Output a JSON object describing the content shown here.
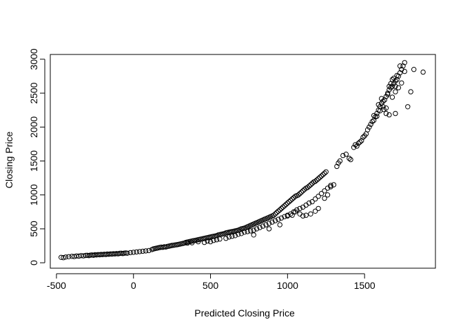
{
  "chart_data": {
    "type": "scatter",
    "title": "",
    "xlabel": "Predicted Closing Price",
    "ylabel": "Closing Price",
    "xlim": [
      -540,
      1960
    ],
    "ylim": [
      -80,
      3070
    ],
    "xticks": [
      -500,
      0,
      500,
      1000,
      1500
    ],
    "yticks": [
      0,
      500,
      1000,
      1500,
      2000,
      2500,
      3000
    ],
    "grid": false,
    "legend": "none",
    "marker": "open-circle",
    "points": [
      [
        -470,
        80
      ],
      [
        -455,
        75
      ],
      [
        -440,
        85
      ],
      [
        -420,
        90
      ],
      [
        -400,
        95
      ],
      [
        -385,
        92
      ],
      [
        -370,
        100
      ],
      [
        -355,
        98
      ],
      [
        -340,
        105
      ],
      [
        -325,
        102
      ],
      [
        -310,
        108
      ],
      [
        -300,
        110
      ],
      [
        -290,
        106
      ],
      [
        -280,
        112
      ],
      [
        -270,
        115
      ],
      [
        -260,
        110
      ],
      [
        -250,
        118
      ],
      [
        -240,
        115
      ],
      [
        -230,
        120
      ],
      [
        -220,
        118
      ],
      [
        -210,
        122
      ],
      [
        -200,
        120
      ],
      [
        -190,
        125
      ],
      [
        -180,
        122
      ],
      [
        -170,
        128
      ],
      [
        -160,
        125
      ],
      [
        -150,
        130
      ],
      [
        -140,
        128
      ],
      [
        -130,
        132
      ],
      [
        -120,
        130
      ],
      [
        -110,
        135
      ],
      [
        -100,
        132
      ],
      [
        -90,
        138
      ],
      [
        -80,
        140
      ],
      [
        -70,
        136
      ],
      [
        -60,
        142
      ],
      [
        -50,
        145
      ],
      [
        -40,
        140
      ],
      [
        -20,
        150
      ],
      [
        0,
        155
      ],
      [
        20,
        160
      ],
      [
        40,
        165
      ],
      [
        60,
        170
      ],
      [
        80,
        175
      ],
      [
        100,
        180
      ],
      [
        120,
        195
      ],
      [
        130,
        205
      ],
      [
        140,
        210
      ],
      [
        150,
        215
      ],
      [
        160,
        220
      ],
      [
        170,
        225
      ],
      [
        180,
        230
      ],
      [
        190,
        228
      ],
      [
        200,
        235
      ],
      [
        210,
        232
      ],
      [
        220,
        240
      ],
      [
        230,
        245
      ],
      [
        240,
        250
      ],
      [
        250,
        255
      ],
      [
        260,
        258
      ],
      [
        270,
        262
      ],
      [
        280,
        265
      ],
      [
        290,
        270
      ],
      [
        300,
        275
      ],
      [
        310,
        280
      ],
      [
        320,
        285
      ],
      [
        330,
        290
      ],
      [
        340,
        300
      ],
      [
        350,
        305
      ],
      [
        360,
        310
      ],
      [
        370,
        315
      ],
      [
        380,
        320
      ],
      [
        390,
        325
      ],
      [
        400,
        330
      ],
      [
        410,
        335
      ],
      [
        420,
        340
      ],
      [
        430,
        345
      ],
      [
        440,
        350
      ],
      [
        450,
        355
      ],
      [
        460,
        360
      ],
      [
        470,
        365
      ],
      [
        480,
        370
      ],
      [
        490,
        375
      ],
      [
        500,
        380
      ],
      [
        510,
        385
      ],
      [
        520,
        390
      ],
      [
        530,
        395
      ],
      [
        540,
        400
      ],
      [
        550,
        410
      ],
      [
        560,
        415
      ],
      [
        570,
        420
      ],
      [
        580,
        425
      ],
      [
        590,
        430
      ],
      [
        600,
        440
      ],
      [
        610,
        445
      ],
      [
        620,
        450
      ],
      [
        630,
        455
      ],
      [
        640,
        460
      ],
      [
        650,
        465
      ],
      [
        660,
        470
      ],
      [
        670,
        475
      ],
      [
        680,
        480
      ],
      [
        690,
        490
      ],
      [
        700,
        500
      ],
      [
        710,
        505
      ],
      [
        720,
        510
      ],
      [
        730,
        520
      ],
      [
        740,
        530
      ],
      [
        750,
        540
      ],
      [
        760,
        550
      ],
      [
        770,
        560
      ],
      [
        780,
        570
      ],
      [
        790,
        580
      ],
      [
        800,
        590
      ],
      [
        810,
        600
      ],
      [
        820,
        610
      ],
      [
        830,
        620
      ],
      [
        840,
        630
      ],
      [
        850,
        640
      ],
      [
        860,
        650
      ],
      [
        870,
        660
      ],
      [
        880,
        670
      ],
      [
        890,
        680
      ],
      [
        900,
        690
      ],
      [
        910,
        700
      ],
      [
        920,
        720
      ],
      [
        930,
        740
      ],
      [
        940,
        760
      ],
      [
        950,
        780
      ],
      [
        960,
        800
      ],
      [
        970,
        820
      ],
      [
        980,
        840
      ],
      [
        990,
        860
      ],
      [
        1000,
        880
      ],
      [
        1010,
        900
      ],
      [
        1020,
        920
      ],
      [
        1030,
        940
      ],
      [
        1040,
        960
      ],
      [
        1050,
        980
      ],
      [
        1060,
        990
      ],
      [
        1070,
        1000
      ],
      [
        1080,
        1020
      ],
      [
        1090,
        1040
      ],
      [
        1100,
        1060
      ],
      [
        1110,
        1080
      ],
      [
        1120,
        1100
      ],
      [
        1130,
        1110
      ],
      [
        1140,
        1130
      ],
      [
        1150,
        1150
      ],
      [
        1160,
        1170
      ],
      [
        1170,
        1190
      ],
      [
        1180,
        1200
      ],
      [
        1190,
        1220
      ],
      [
        1200,
        1240
      ],
      [
        1210,
        1260
      ],
      [
        1220,
        1280
      ],
      [
        1230,
        1300
      ],
      [
        1240,
        1320
      ],
      [
        1250,
        1340
      ],
      [
        350,
        290
      ],
      [
        380,
        295
      ],
      [
        420,
        310
      ],
      [
        460,
        300
      ],
      [
        480,
        320
      ],
      [
        500,
        310
      ],
      [
        520,
        330
      ],
      [
        540,
        340
      ],
      [
        560,
        350
      ],
      [
        600,
        360
      ],
      [
        620,
        380
      ],
      [
        640,
        390
      ],
      [
        660,
        400
      ],
      [
        680,
        420
      ],
      [
        700,
        430
      ],
      [
        720,
        450
      ],
      [
        740,
        460
      ],
      [
        760,
        470
      ],
      [
        780,
        480
      ],
      [
        800,
        500
      ],
      [
        820,
        520
      ],
      [
        840,
        540
      ],
      [
        860,
        560
      ],
      [
        880,
        580
      ],
      [
        900,
        600
      ],
      [
        920,
        620
      ],
      [
        940,
        640
      ],
      [
        960,
        660
      ],
      [
        980,
        680
      ],
      [
        1000,
        700
      ],
      [
        1020,
        720
      ],
      [
        1040,
        750
      ],
      [
        1060,
        780
      ],
      [
        1080,
        800
      ],
      [
        1100,
        820
      ],
      [
        1120,
        850
      ],
      [
        1140,
        880
      ],
      [
        1160,
        900
      ],
      [
        1180,
        940
      ],
      [
        1200,
        980
      ],
      [
        1220,
        1020
      ],
      [
        1240,
        1060
      ],
      [
        1260,
        1100
      ],
      [
        1280,
        1140
      ],
      [
        780,
        410
      ],
      [
        880,
        500
      ],
      [
        950,
        560
      ],
      [
        1000,
        690
      ],
      [
        1030,
        700
      ],
      [
        1050,
        750
      ],
      [
        1080,
        720
      ],
      [
        1100,
        690
      ],
      [
        1120,
        700
      ],
      [
        1150,
        720
      ],
      [
        1180,
        760
      ],
      [
        1200,
        800
      ],
      [
        1240,
        950
      ],
      [
        1260,
        1000
      ],
      [
        1280,
        1120
      ],
      [
        1300,
        1150
      ],
      [
        1320,
        1420
      ],
      [
        1330,
        1470
      ],
      [
        1340,
        1500
      ],
      [
        1360,
        1580
      ],
      [
        1380,
        1600
      ],
      [
        1400,
        1540
      ],
      [
        1410,
        1520
      ],
      [
        1430,
        1700
      ],
      [
        1440,
        1740
      ],
      [
        1450,
        1720
      ],
      [
        1460,
        1760
      ],
      [
        1470,
        1780
      ],
      [
        1480,
        1800
      ],
      [
        1490,
        1850
      ],
      [
        1500,
        1870
      ],
      [
        1510,
        1900
      ],
      [
        1520,
        1960
      ],
      [
        1530,
        2000
      ],
      [
        1540,
        2040
      ],
      [
        1550,
        2080
      ],
      [
        1560,
        2100
      ],
      [
        1570,
        2150
      ],
      [
        1580,
        2200
      ],
      [
        1590,
        2250
      ],
      [
        1600,
        2300
      ],
      [
        1610,
        2350
      ],
      [
        1620,
        2380
      ],
      [
        1630,
        2400
      ],
      [
        1640,
        2450
      ],
      [
        1650,
        2500
      ],
      [
        1660,
        2550
      ],
      [
        1670,
        2580
      ],
      [
        1680,
        2600
      ],
      [
        1690,
        2640
      ],
      [
        1700,
        2680
      ],
      [
        1710,
        2700
      ],
      [
        1720,
        2750
      ],
      [
        1730,
        2800
      ],
      [
        1740,
        2850
      ],
      [
        1750,
        2900
      ],
      [
        1760,
        2950
      ],
      [
        1580,
        2160
      ],
      [
        1600,
        2240
      ],
      [
        1620,
        2300
      ],
      [
        1640,
        2200
      ],
      [
        1660,
        2180
      ],
      [
        1680,
        2440
      ],
      [
        1700,
        2520
      ],
      [
        1720,
        2580
      ],
      [
        1740,
        2650
      ],
      [
        1760,
        2820
      ],
      [
        1780,
        2300
      ],
      [
        1800,
        2520
      ],
      [
        1820,
        2850
      ],
      [
        1880,
        2810
      ],
      [
        1660,
        2600
      ],
      [
        1670,
        2640
      ],
      [
        1690,
        2720
      ],
      [
        1710,
        2760
      ],
      [
        1730,
        2900
      ],
      [
        1640,
        2280
      ],
      [
        1625,
        2260
      ],
      [
        1700,
        2200
      ],
      [
        1560,
        2170
      ],
      [
        1590,
        2330
      ],
      [
        1610,
        2420
      ],
      [
        1650,
        2480
      ],
      [
        1680,
        2700
      ],
      [
        1700,
        2600
      ]
    ]
  }
}
